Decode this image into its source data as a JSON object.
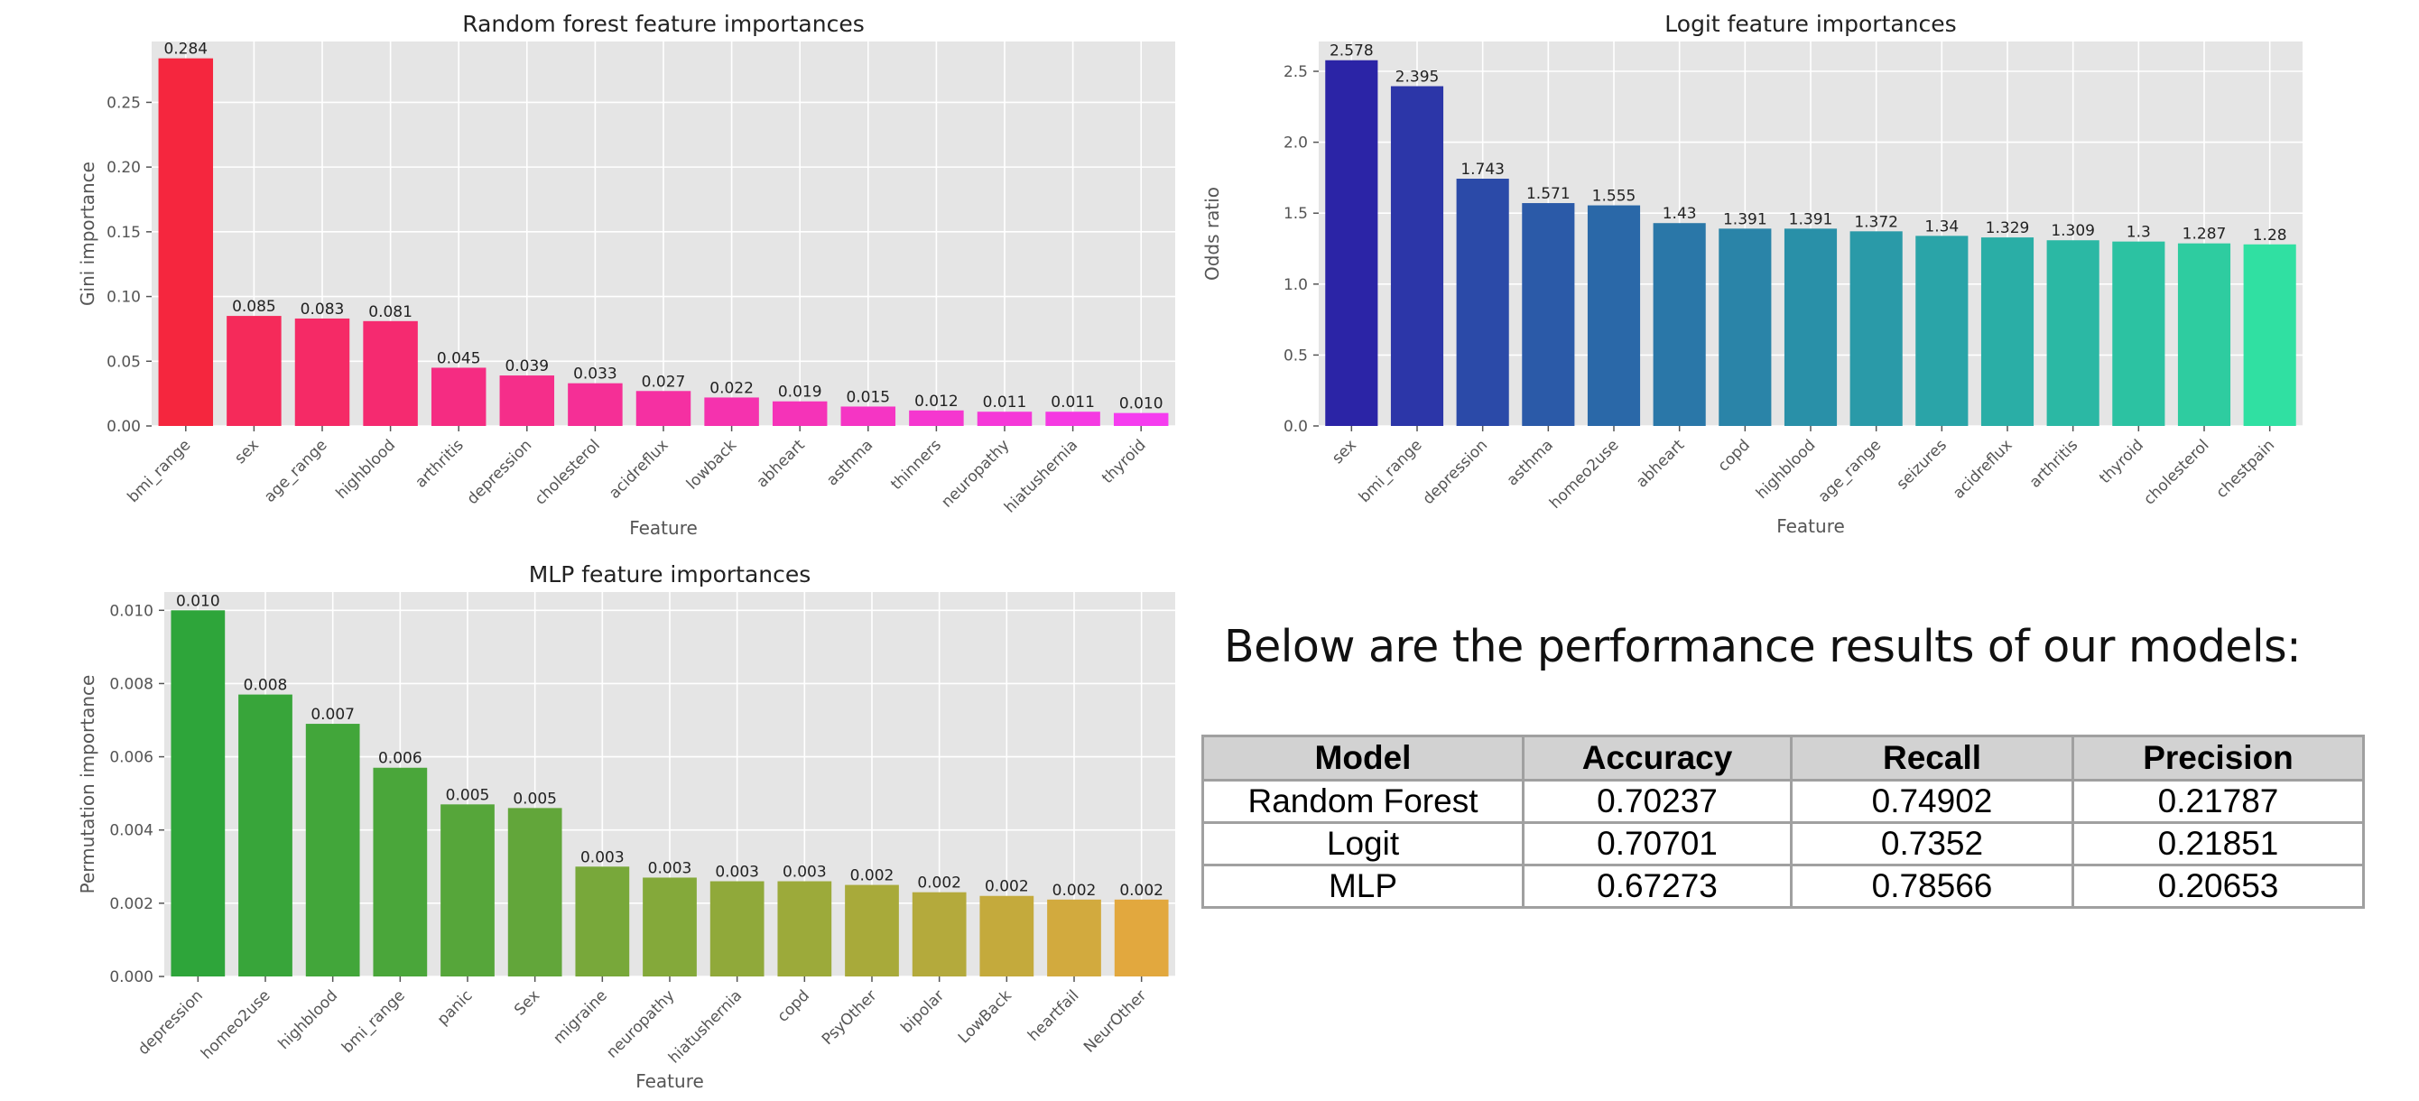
{
  "chart_data": [
    {
      "type": "bar",
      "title": "Random forest feature importances",
      "xlabel": "Feature",
      "ylabel": "Gini importance",
      "ylim": [
        0,
        0.297
      ],
      "yticks": [
        0.0,
        0.05,
        0.1,
        0.15,
        0.2,
        0.25
      ],
      "ytick_labels": [
        "0.00",
        "0.05",
        "0.10",
        "0.15",
        "0.20",
        "0.25"
      ],
      "categories": [
        "bmi_range",
        "sex",
        "age_range",
        "highblood",
        "arthritis",
        "depression",
        "cholesterol",
        "acidreflux",
        "lowback",
        "abheart",
        "asthma",
        "thinners",
        "neuropathy",
        "hiatushernia",
        "thyroid"
      ],
      "values": [
        0.284,
        0.085,
        0.083,
        0.081,
        0.045,
        0.039,
        0.033,
        0.027,
        0.022,
        0.019,
        0.015,
        0.012,
        0.011,
        0.011,
        0.01
      ],
      "value_labels": [
        "0.284",
        "0.085",
        "0.083",
        "0.081",
        "0.045",
        "0.039",
        "0.033",
        "0.027",
        "0.022",
        "0.019",
        "0.015",
        "0.012",
        "0.011",
        "0.011",
        "0.010"
      ],
      "colors": [
        "#f5263e",
        "#f52a5a",
        "#f52a66",
        "#f52a70",
        "#f52c82",
        "#f52e8a",
        "#f52f96",
        "#f530a2",
        "#f532ae",
        "#f533b8",
        "#f535c4",
        "#f537cf",
        "#f538d8",
        "#f53ae2",
        "#f53cef"
      ],
      "grid": true
    },
    {
      "type": "bar",
      "title": "Logit feature importances",
      "xlabel": "Feature",
      "ylabel": "Odds ratio",
      "ylim": [
        0,
        2.71
      ],
      "yticks": [
        0.0,
        0.5,
        1.0,
        1.5,
        2.0,
        2.5
      ],
      "ytick_labels": [
        "0.0",
        "0.5",
        "1.0",
        "1.5",
        "2.0",
        "2.5"
      ],
      "categories": [
        "sex",
        "bmi_range",
        "depression",
        "asthma",
        "homeo2use",
        "abheart",
        "copd",
        "highblood",
        "age_range",
        "seizures",
        "acidreflux",
        "arthritis",
        "thyroid",
        "cholesterol",
        "chestpain"
      ],
      "values": [
        2.578,
        2.395,
        1.743,
        1.571,
        1.555,
        1.43,
        1.391,
        1.391,
        1.372,
        1.34,
        1.329,
        1.309,
        1.3,
        1.287,
        1.28
      ],
      "value_labels": [
        "2.578",
        "2.395",
        "1.743",
        "1.571",
        "1.555",
        "1.43",
        "1.391",
        "1.391",
        "1.372",
        "1.34",
        "1.329",
        "1.309",
        "1.3",
        "1.287",
        "1.28"
      ],
      "colors": [
        "#2b24a6",
        "#2c36a8",
        "#2b4aa8",
        "#2b5aa8",
        "#2a68a8",
        "#2a77a8",
        "#2a84a8",
        "#2990a8",
        "#2a9aa8",
        "#2aa4a8",
        "#2aaea6",
        "#2bb8a4",
        "#2cc2a2",
        "#2ecca0",
        "#30e0a2"
      ],
      "grid": true
    },
    {
      "type": "bar",
      "title": "MLP feature importances",
      "xlabel": "Feature",
      "ylabel": "Permutation importance",
      "ylim": [
        0,
        0.0105
      ],
      "yticks": [
        0.0,
        0.002,
        0.004,
        0.006,
        0.008,
        0.01
      ],
      "ytick_labels": [
        "0.000",
        "0.002",
        "0.004",
        "0.006",
        "0.008",
        "0.010"
      ],
      "categories": [
        "depression",
        "homeo2use",
        "highblood",
        "bmi_range",
        "panic",
        "Sex",
        "migraine",
        "neuropathy",
        "hiatushernia",
        "copd",
        "PsyOther",
        "bipolar",
        "LowBack",
        "heartfail",
        "NeurOther"
      ],
      "values": [
        0.01,
        0.0077,
        0.0069,
        0.0057,
        0.0047,
        0.0046,
        0.003,
        0.0027,
        0.0026,
        0.0026,
        0.0025,
        0.0023,
        0.0022,
        0.0021,
        0.0021
      ],
      "value_labels": [
        "0.010",
        "0.008",
        "0.007",
        "0.006",
        "0.005",
        "0.005",
        "0.003",
        "0.003",
        "0.003",
        "0.003",
        "0.002",
        "0.002",
        "0.002",
        "0.002",
        "0.002"
      ],
      "colors": [
        "#2ea53a",
        "#38a53a",
        "#42a63a",
        "#4aa63a",
        "#56a63a",
        "#62a63a",
        "#78a83a",
        "#84a93a",
        "#90a93a",
        "#9caa3a",
        "#a8aa3a",
        "#b4aa3c",
        "#c4aa3c",
        "#d2aa3e",
        "#e2a83e"
      ],
      "grid": true
    }
  ],
  "performance": {
    "heading": "Below are the performance results of our models:",
    "columns": [
      "Model",
      "Accuracy",
      "Recall",
      "Precision"
    ],
    "rows": [
      [
        "Random Forest",
        "0.70237",
        "0.74902",
        "0.21787"
      ],
      [
        "Logit",
        "0.70701",
        "0.7352",
        "0.21851"
      ],
      [
        "MLP",
        "0.67273",
        "0.78566",
        "0.20653"
      ]
    ]
  }
}
